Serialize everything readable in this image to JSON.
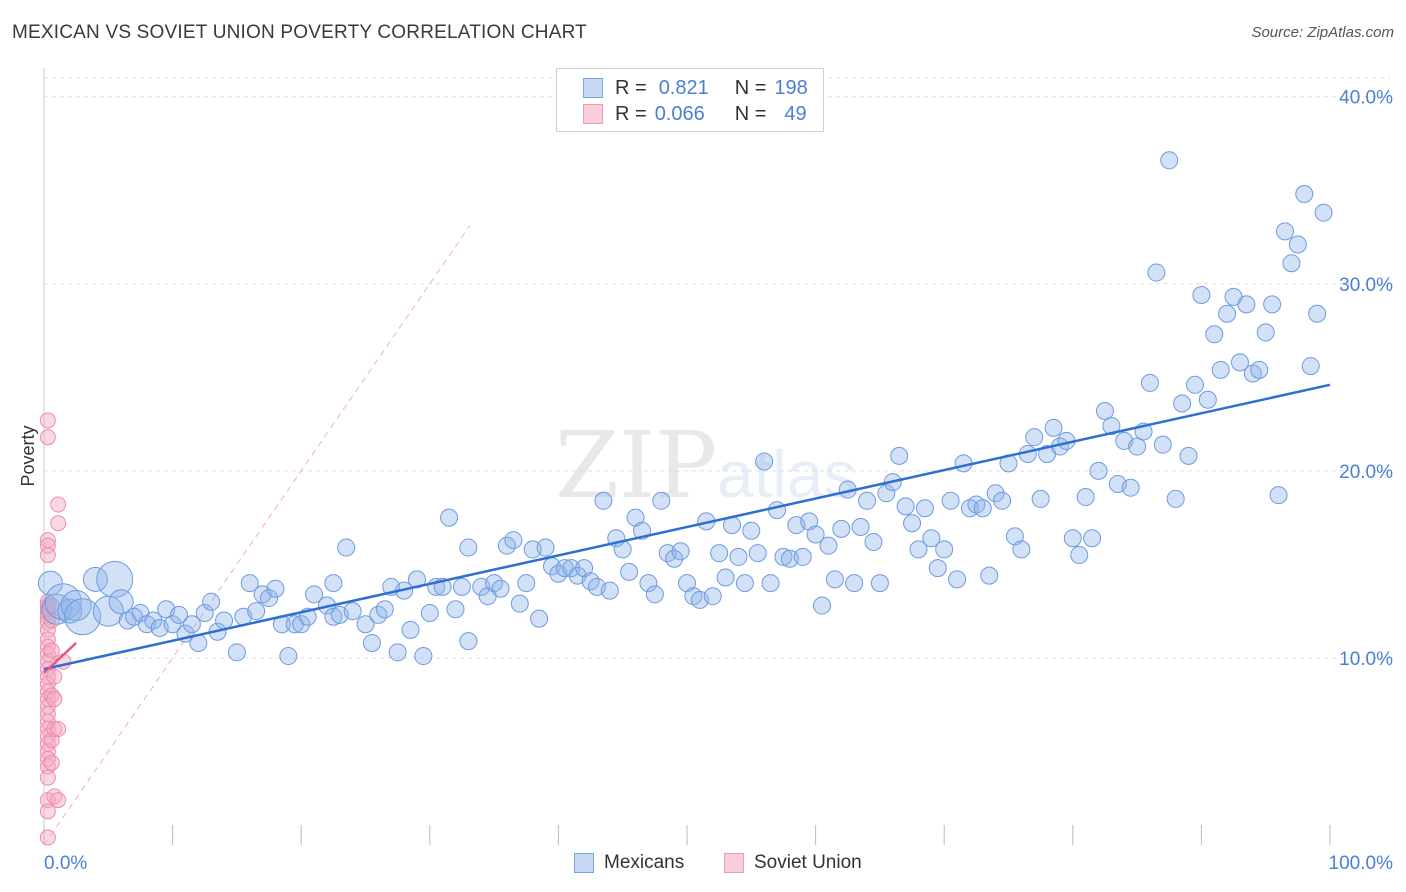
{
  "title": "MEXICAN VS SOVIET UNION POVERTY CORRELATION CHART",
  "source": "Source: ZipAtlas.com",
  "watermark": {
    "zip": "ZIP",
    "atlas": "atlas"
  },
  "colors": {
    "blue": "#8fb3e8",
    "blue_stroke": "#6d9be0",
    "blue_line": "#2e6fd1",
    "pink": "#f4a9c0",
    "pink_stroke": "#ef8aab",
    "pink_line": "#e05a86",
    "grid": "#dddddd",
    "label": "#4a7fd4"
  },
  "legend": {
    "rows": [
      {
        "r_label": "R =",
        "r_value": "0.821",
        "n_label": "N =",
        "n_value": "198",
        "series": "Mexicans"
      },
      {
        "r_label": "R =",
        "r_value": "0.066",
        "n_label": "N =",
        "n_value": "49",
        "series": "Soviet Union"
      }
    ]
  },
  "bottom_legend": [
    "Mexicans",
    "Soviet Union"
  ],
  "chart_data": {
    "type": "scatter",
    "xlabel": "",
    "ylabel": "Poverty",
    "xlim": [
      0,
      100
    ],
    "ylim": [
      0,
      41
    ],
    "x_ticks": [
      "0.0%",
      "100.0%"
    ],
    "y_ticks": [
      {
        "value": 10,
        "label": "10.0%"
      },
      {
        "value": 20,
        "label": "20.0%"
      },
      {
        "value": 30,
        "label": "30.0%"
      },
      {
        "value": 40,
        "label": "40.0%"
      }
    ],
    "grid": true,
    "legend_position": "top-center",
    "series": [
      {
        "name": "Mexicans",
        "R": 0.821,
        "N": 198,
        "trend": {
          "x": [
            0,
            100
          ],
          "y": [
            9.4,
            24.6
          ]
        },
        "points": [
          [
            0.5,
            14
          ],
          [
            1,
            12.6
          ],
          [
            1.5,
            13
          ],
          [
            2,
            12.5
          ],
          [
            2.5,
            12.8
          ],
          [
            3,
            12.2
          ],
          [
            4,
            14.2
          ],
          [
            5,
            12.5
          ],
          [
            5.5,
            14.2
          ],
          [
            6,
            13
          ],
          [
            6.5,
            12
          ],
          [
            7,
            12.2
          ],
          [
            7.5,
            12.4
          ],
          [
            8,
            11.8
          ],
          [
            8.5,
            12
          ],
          [
            9,
            11.6
          ],
          [
            9.5,
            12.6
          ],
          [
            10,
            11.8
          ],
          [
            10.5,
            12.3
          ],
          [
            11,
            11.3
          ],
          [
            11.5,
            11.8
          ],
          [
            12,
            10.8
          ],
          [
            12.5,
            12.4
          ],
          [
            13,
            13
          ],
          [
            13.5,
            11.4
          ],
          [
            14,
            12
          ],
          [
            15,
            10.3
          ],
          [
            15.5,
            12.2
          ],
          [
            16,
            14
          ],
          [
            16.5,
            12.5
          ],
          [
            17,
            13.4
          ],
          [
            17.5,
            13.2
          ],
          [
            18,
            13.7
          ],
          [
            18.5,
            11.8
          ],
          [
            19,
            10.1
          ],
          [
            19.5,
            11.8
          ],
          [
            20,
            11.8
          ],
          [
            20.5,
            12.2
          ],
          [
            21,
            13.4
          ],
          [
            22,
            12.8
          ],
          [
            22.5,
            14
          ],
          [
            22.5,
            12.2
          ],
          [
            23,
            12.3
          ],
          [
            23.5,
            15.9
          ],
          [
            24,
            12.5
          ],
          [
            25,
            11.8
          ],
          [
            25.5,
            10.8
          ],
          [
            26,
            12.3
          ],
          [
            26.5,
            12.6
          ],
          [
            27,
            13.8
          ],
          [
            27.5,
            10.3
          ],
          [
            28,
            13.6
          ],
          [
            28.5,
            11.5
          ],
          [
            29,
            14.2
          ],
          [
            29.5,
            10.1
          ],
          [
            30,
            12.4
          ],
          [
            30.5,
            13.8
          ],
          [
            31,
            13.8
          ],
          [
            31.5,
            17.5
          ],
          [
            32,
            12.6
          ],
          [
            32.5,
            13.8
          ],
          [
            33,
            15.9
          ],
          [
            33,
            10.9
          ],
          [
            34,
            13.8
          ],
          [
            34.5,
            13.3
          ],
          [
            35,
            14
          ],
          [
            35.5,
            13.7
          ],
          [
            36,
            16
          ],
          [
            36.5,
            16.3
          ],
          [
            37,
            12.9
          ],
          [
            37.5,
            14
          ],
          [
            38,
            15.8
          ],
          [
            38.5,
            12.1
          ],
          [
            39,
            15.9
          ],
          [
            39.5,
            14.9
          ],
          [
            40,
            14.5
          ],
          [
            40.5,
            14.8
          ],
          [
            41,
            14.8
          ],
          [
            41.5,
            14.4
          ],
          [
            42,
            14.8
          ],
          [
            42.5,
            14.1
          ],
          [
            43,
            13.8
          ],
          [
            43.5,
            18.4
          ],
          [
            44,
            13.6
          ],
          [
            44.5,
            16.4
          ],
          [
            45,
            15.8
          ],
          [
            45.5,
            14.6
          ],
          [
            46,
            17.5
          ],
          [
            46.5,
            16.8
          ],
          [
            47,
            14
          ],
          [
            47.5,
            13.4
          ],
          [
            48,
            18.4
          ],
          [
            48.5,
            15.6
          ],
          [
            49,
            15.3
          ],
          [
            49.5,
            15.7
          ],
          [
            50,
            14
          ],
          [
            50.5,
            13.3
          ],
          [
            51,
            13.1
          ],
          [
            51.5,
            17.3
          ],
          [
            52,
            13.3
          ],
          [
            52.5,
            15.6
          ],
          [
            53,
            14.3
          ],
          [
            53.5,
            17.1
          ],
          [
            54,
            15.4
          ],
          [
            54.5,
            14
          ],
          [
            55,
            16.8
          ],
          [
            55.5,
            15.6
          ],
          [
            56,
            20.5
          ],
          [
            56.5,
            14
          ],
          [
            57,
            17.9
          ],
          [
            57.5,
            15.4
          ],
          [
            58,
            15.3
          ],
          [
            58.5,
            17.1
          ],
          [
            59,
            15.4
          ],
          [
            59.5,
            17.3
          ],
          [
            60,
            16.6
          ],
          [
            60.5,
            12.8
          ],
          [
            61,
            16
          ],
          [
            61.5,
            14.2
          ],
          [
            62,
            16.9
          ],
          [
            62.5,
            19
          ],
          [
            63,
            14
          ],
          [
            63.5,
            17
          ],
          [
            64,
            18.4
          ],
          [
            64.5,
            16.2
          ],
          [
            65,
            14
          ],
          [
            65.5,
            18.8
          ],
          [
            66,
            19.4
          ],
          [
            66.5,
            20.8
          ],
          [
            67,
            18.1
          ],
          [
            67.5,
            17.2
          ],
          [
            68,
            15.8
          ],
          [
            68.5,
            18
          ],
          [
            69,
            16.4
          ],
          [
            69.5,
            14.8
          ],
          [
            70,
            15.8
          ],
          [
            70.5,
            18.4
          ],
          [
            71,
            14.2
          ],
          [
            71.5,
            20.4
          ],
          [
            72,
            18
          ],
          [
            72.5,
            18.2
          ],
          [
            73,
            18
          ],
          [
            73.5,
            14.4
          ],
          [
            74,
            18.8
          ],
          [
            74.5,
            18.4
          ],
          [
            75,
            20.4
          ],
          [
            75.5,
            16.5
          ],
          [
            76,
            15.8
          ],
          [
            76.5,
            20.9
          ],
          [
            77,
            21.8
          ],
          [
            77.5,
            18.5
          ],
          [
            78,
            20.9
          ],
          [
            78.5,
            22.3
          ],
          [
            79,
            21.3
          ],
          [
            79.5,
            21.6
          ],
          [
            80,
            16.4
          ],
          [
            80.5,
            15.5
          ],
          [
            81,
            18.6
          ],
          [
            81.5,
            16.4
          ],
          [
            82,
            20
          ],
          [
            82.5,
            23.2
          ],
          [
            83,
            22.4
          ],
          [
            83.5,
            19.3
          ],
          [
            84,
            21.6
          ],
          [
            84.5,
            19.1
          ],
          [
            85,
            21.3
          ],
          [
            85.5,
            22.1
          ],
          [
            86,
            24.7
          ],
          [
            86.5,
            30.6
          ],
          [
            87,
            21.4
          ],
          [
            87.5,
            36.6
          ],
          [
            88,
            18.5
          ],
          [
            88.5,
            23.6
          ],
          [
            89,
            20.8
          ],
          [
            89.5,
            24.6
          ],
          [
            90,
            29.4
          ],
          [
            90.5,
            23.8
          ],
          [
            91,
            27.3
          ],
          [
            91.5,
            25.4
          ],
          [
            92,
            28.4
          ],
          [
            92.5,
            29.3
          ],
          [
            93,
            25.8
          ],
          [
            93.5,
            28.9
          ],
          [
            94,
            25.2
          ],
          [
            94.5,
            25.4
          ],
          [
            95,
            27.4
          ],
          [
            95.5,
            28.9
          ],
          [
            96,
            18.7
          ],
          [
            96.5,
            32.8
          ],
          [
            97,
            31.1
          ],
          [
            97.5,
            32.1
          ],
          [
            98,
            34.8
          ],
          [
            98.5,
            25.6
          ],
          [
            99,
            28.4
          ],
          [
            99.5,
            33.8
          ]
        ]
      },
      {
        "name": "Soviet Union",
        "R": 0.066,
        "N": 49,
        "trend": {
          "x": [
            0,
            2.5
          ],
          "y": [
            9.2,
            10.8
          ]
        },
        "points": [
          [
            0.3,
            22.7
          ],
          [
            0.3,
            21.8
          ],
          [
            0.3,
            16.3
          ],
          [
            0.3,
            16
          ],
          [
            0.3,
            15.5
          ],
          [
            0.3,
            13
          ],
          [
            0.3,
            12.8
          ],
          [
            0.3,
            12.6
          ],
          [
            0.3,
            12.4
          ],
          [
            0.3,
            12.2
          ],
          [
            0.3,
            11.9
          ],
          [
            0.3,
            11.5
          ],
          [
            0.3,
            11
          ],
          [
            0.3,
            10.6
          ],
          [
            0.3,
            10.2
          ],
          [
            0.3,
            9.8
          ],
          [
            0.3,
            9.4
          ],
          [
            0.3,
            9
          ],
          [
            0.3,
            8.6
          ],
          [
            0.3,
            8.2
          ],
          [
            0.3,
            7.8
          ],
          [
            0.3,
            7.4
          ],
          [
            0.3,
            7
          ],
          [
            0.3,
            6.6
          ],
          [
            0.3,
            6.2
          ],
          [
            0.3,
            5.8
          ],
          [
            0.3,
            5.4
          ],
          [
            0.3,
            5
          ],
          [
            0.3,
            4.6
          ],
          [
            0.3,
            4.2
          ],
          [
            0.3,
            3.6
          ],
          [
            0.3,
            2.4
          ],
          [
            0.3,
            1.8
          ],
          [
            0.3,
            0.4
          ],
          [
            0.6,
            12.8
          ],
          [
            0.6,
            12
          ],
          [
            0.6,
            10.4
          ],
          [
            0.6,
            8
          ],
          [
            0.6,
            5.6
          ],
          [
            0.6,
            4.4
          ],
          [
            0.8,
            9
          ],
          [
            0.8,
            7.8
          ],
          [
            0.8,
            6.2
          ],
          [
            0.8,
            2.6
          ],
          [
            1.1,
            18.2
          ],
          [
            1.1,
            17.2
          ],
          [
            1.1,
            6.2
          ],
          [
            1.1,
            2.4
          ],
          [
            1.5,
            9.8
          ]
        ]
      }
    ]
  }
}
